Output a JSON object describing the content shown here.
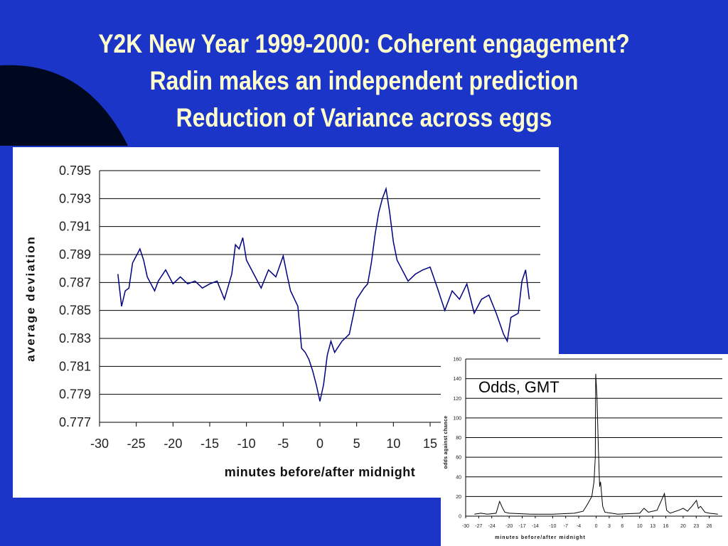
{
  "slide_title": [
    "Y2K New Year 1999-2000: Coherent engagement?",
    "Radin makes an independent prediction",
    "Reduction of Variance across eggs"
  ],
  "chart_data": [
    {
      "type": "line",
      "x_label": "minutes before/after midnight",
      "y_label": "average deviation",
      "color": "#000080",
      "grid": true,
      "xlim": [
        -30,
        30
      ],
      "xticks": [
        -30,
        -25,
        -20,
        -15,
        -10,
        -5,
        0,
        5,
        10,
        15
      ],
      "ylim": [
        0.777,
        0.795
      ],
      "yticks": [
        0.777,
        0.779,
        0.781,
        0.783,
        0.785,
        0.787,
        0.789,
        0.791,
        0.793,
        0.795
      ],
      "x": [
        -27.5,
        -27,
        -26.5,
        -26,
        -25.5,
        -25,
        -24.5,
        -24,
        -23.5,
        -23,
        -22.5,
        -22,
        -21,
        -20,
        -19,
        -18,
        -17,
        -16,
        -15,
        -14,
        -13,
        -12,
        -11.5,
        -11,
        -10.5,
        -10,
        -9,
        -8,
        -7,
        -6,
        -5,
        -4.5,
        -4,
        -3,
        -2.5,
        -2,
        -1.5,
        -1,
        -0.5,
        0,
        0.5,
        1,
        1.5,
        2,
        3,
        4,
        5,
        6,
        6.5,
        7,
        7.5,
        8,
        8.5,
        9,
        9.5,
        10,
        10.5,
        11,
        12,
        13,
        14,
        15,
        16,
        17,
        18,
        19,
        20,
        21,
        22,
        23,
        24,
        25,
        25.5,
        26,
        27,
        27.5,
        28,
        28.5
      ],
      "values": [
        0.7876,
        0.7853,
        0.7864,
        0.7866,
        0.7884,
        0.7889,
        0.7894,
        0.7886,
        0.7874,
        0.7869,
        0.7864,
        0.7871,
        0.7879,
        0.7869,
        0.7874,
        0.7869,
        0.7871,
        0.7866,
        0.7869,
        0.7871,
        0.7858,
        0.7876,
        0.7897,
        0.7894,
        0.7902,
        0.7886,
        0.7876,
        0.7866,
        0.7879,
        0.7874,
        0.7889,
        0.7876,
        0.7864,
        0.7853,
        0.7823,
        0.782,
        0.7815,
        0.7807,
        0.7797,
        0.7785,
        0.7797,
        0.7818,
        0.7828,
        0.782,
        0.7828,
        0.7833,
        0.7858,
        0.7866,
        0.7869,
        0.7884,
        0.7904,
        0.792,
        0.793,
        0.7937,
        0.792,
        0.7899,
        0.7886,
        0.7881,
        0.7871,
        0.7876,
        0.7879,
        0.7881,
        0.7866,
        0.785,
        0.7864,
        0.7858,
        0.7869,
        0.7848,
        0.7858,
        0.7861,
        0.7848,
        0.7833,
        0.7828,
        0.7845,
        0.7848,
        0.7871,
        0.7879,
        0.7858
      ]
    },
    {
      "type": "line",
      "x_label": "minutes before/after midnight",
      "y_label": "odds against chance",
      "annotation": "Odds, GMT",
      "color": "#000000",
      "grid": true,
      "xlim": [
        -30,
        29
      ],
      "xticks": [
        -30,
        -27,
        -24,
        -20,
        -17,
        -14,
        -10,
        -7,
        -4,
        0,
        3,
        6,
        10,
        13,
        16,
        20,
        23,
        26
      ],
      "ylim": [
        0,
        160
      ],
      "yticks": [
        0,
        20,
        40,
        60,
        80,
        100,
        120,
        140,
        160
      ],
      "x": [
        -28,
        -26.5,
        -25,
        -23,
        -22.2,
        -21.5,
        -21,
        -20,
        -15,
        -10,
        -5,
        -3,
        -2,
        -1,
        -0.5,
        -0.2,
        -0.1,
        0.2,
        0.5,
        0.8,
        1,
        1.5,
        2,
        5,
        10,
        11,
        12,
        14,
        15.7,
        16.2,
        17,
        19,
        20,
        21,
        22,
        23.06,
        23.5,
        24,
        25,
        26,
        28
      ],
      "values": [
        2,
        3,
        2,
        3,
        15,
        8,
        4,
        3,
        2,
        2,
        3,
        5,
        12,
        20,
        35,
        60,
        145,
        120,
        70,
        30,
        35,
        10,
        4,
        2,
        3,
        8,
        4,
        6,
        23,
        6,
        3,
        6,
        8,
        5,
        10,
        16,
        8,
        10,
        4,
        3,
        2
      ]
    }
  ]
}
